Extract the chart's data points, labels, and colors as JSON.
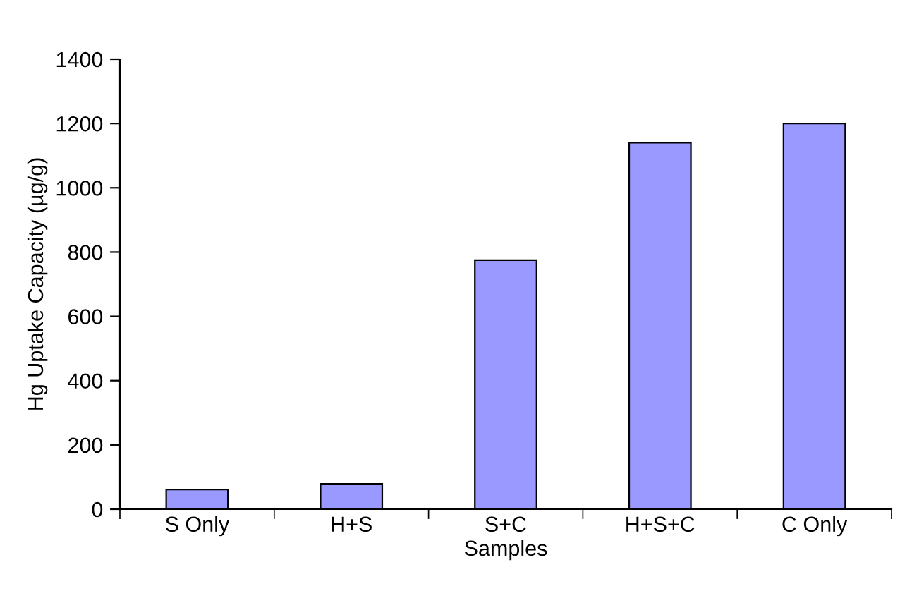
{
  "chart_data": {
    "type": "bar",
    "xlabel": "Samples",
    "ylabel": "Hg Uptake Capacity (µg/g)",
    "categories": [
      "S Only",
      "H+S",
      "S+C",
      "H+S+C",
      "C Only"
    ],
    "values": [
      61,
      79,
      775,
      1140,
      1200
    ],
    "color": "#9999ff",
    "ylim": [
      0,
      1400
    ],
    "yticks": [
      0,
      200,
      400,
      600,
      800,
      1000,
      1200,
      1400
    ],
    "grid": false,
    "legend": false
  }
}
